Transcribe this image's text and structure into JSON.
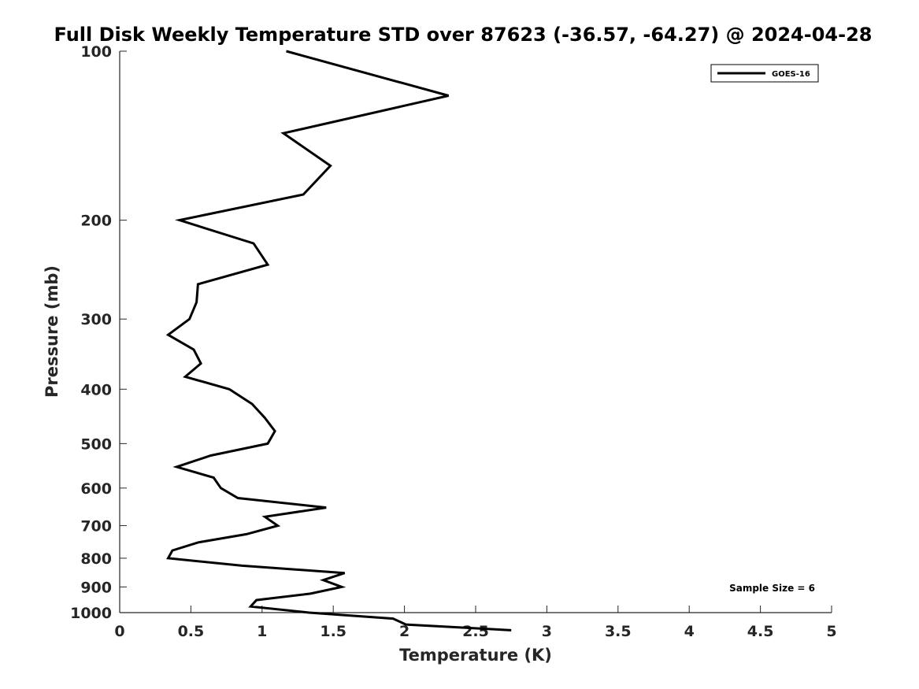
{
  "chart_data": {
    "type": "line",
    "title": "Full Disk Weekly Temperature STD over 87623 (-36.57, -64.27) @ 2024-04-28",
    "xlabel": "Temperature (K)",
    "ylabel": "Pressure (mb)",
    "xlim": [
      0,
      5
    ],
    "ylim": [
      100,
      1000
    ],
    "y_scale": "log",
    "y_reversed": true,
    "grid": false,
    "legend_position": "top-right",
    "x_ticks": [
      "0",
      "0.5",
      "1",
      "1.5",
      "2",
      "2.5",
      "3",
      "3.5",
      "4",
      "4.5",
      "5"
    ],
    "y_ticks": [
      "100",
      "200",
      "300",
      "400",
      "500",
      "600",
      "700",
      "800",
      "900",
      "1000"
    ],
    "series": [
      {
        "name": "GOES-16",
        "color": "#000000",
        "x": [
          1.17,
          2.31,
          1.15,
          1.48,
          1.29,
          0.42,
          0.94,
          1.04,
          0.55,
          0.54,
          0.49,
          0.34,
          0.52,
          0.57,
          0.46,
          0.77,
          0.93,
          1.02,
          1.09,
          1.04,
          0.64,
          0.4,
          0.66,
          0.71,
          0.83,
          1.45,
          1.02,
          1.11,
          0.89,
          0.55,
          0.37,
          0.34,
          0.86,
          1.58,
          1.43,
          1.56,
          1.34,
          0.96,
          0.92,
          1.33,
          1.92,
          2.01,
          2.75
        ],
        "y": [
          100,
          120,
          140,
          160,
          180,
          200,
          220,
          240,
          260,
          280,
          300,
          320,
          340,
          360,
          380,
          400,
          425,
          450,
          475,
          500,
          525,
          550,
          575,
          600,
          625,
          650,
          675,
          700,
          725,
          750,
          775,
          800,
          825,
          850,
          875,
          900,
          925,
          950,
          975,
          1000,
          1025,
          1050,
          1075
        ]
      }
    ],
    "annotation": "Sample Size = 6"
  }
}
